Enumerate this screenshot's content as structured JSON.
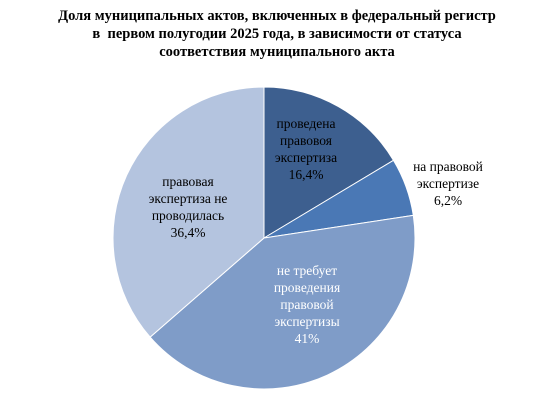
{
  "chart_data": {
    "type": "pie",
    "title_lines": [
      "Доля муниципальных актов, включенных в федеральный регистр",
      "в  первом полугодии 2025 года, в зависимости от статуса",
      "соответствия муниципального акта"
    ],
    "slices": [
      {
        "label_lines": [
          "проведена",
          "правовоя",
          "экспертиза",
          "16,4%"
        ],
        "value": 16.4,
        "color": "#3d5f8f",
        "text_color": "#000000"
      },
      {
        "label_lines": [
          "на правовой",
          "экспертизе",
          "6,2%"
        ],
        "value": 6.2,
        "color": "#4a78b5",
        "text_color": "#000000"
      },
      {
        "label_lines": [
          "не требует",
          "проведения",
          "правовой",
          "экспертизы",
          "41%"
        ],
        "value": 41.0,
        "color": "#7f9cc8",
        "text_color": "#ffffff"
      },
      {
        "label_lines": [
          "правовая",
          "экспертиза не",
          "проводилась",
          "36,4%"
        ],
        "value": 36.4,
        "color": "#b4c4df",
        "text_color": "#000000"
      }
    ],
    "start_angle_deg": 0,
    "direction": "clockwise",
    "legend": "none",
    "label_position": "inside, except small slice outside right"
  }
}
